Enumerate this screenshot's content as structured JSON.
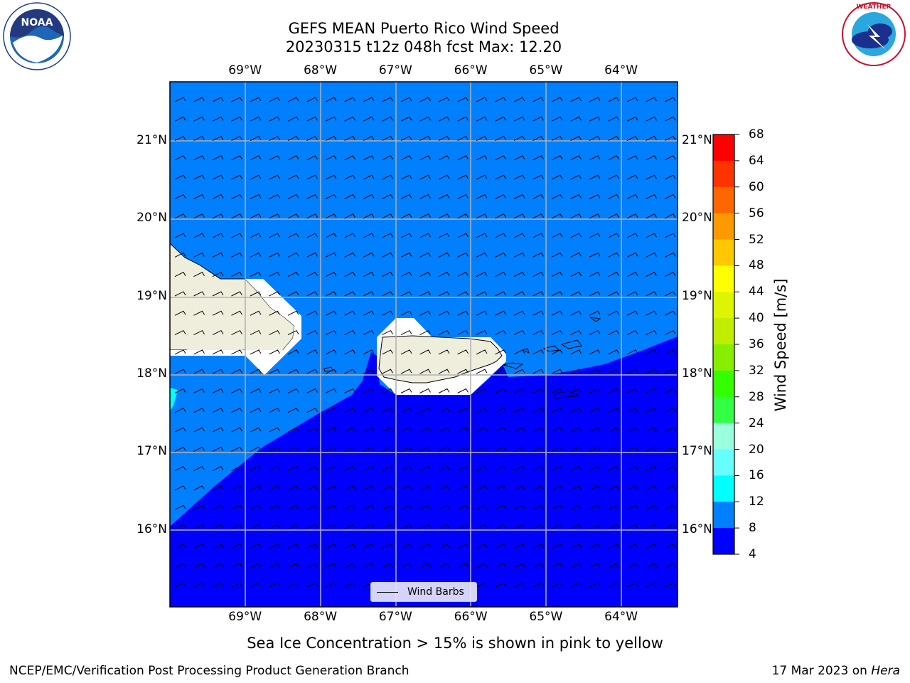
{
  "title": "GEFS MEAN Puerto Rico Wind Speed",
  "subtitle": "20230315 t12z 048h fcst   Max: 12.20",
  "map": {
    "lon_labels": [
      "69°W",
      "68°W",
      "67°W",
      "66°W",
      "65°W",
      "64°W"
    ],
    "lon_values": [
      -69,
      -68,
      -67,
      -66,
      -65,
      -64
    ],
    "lat_labels": [
      "21°N",
      "20°N",
      "19°N",
      "18°N",
      "17°N",
      "16°N"
    ],
    "lat_values": [
      21,
      20,
      19,
      18,
      17,
      16
    ],
    "extent": {
      "lon_min": -70,
      "lon_max": -63.25,
      "lat_min": 15,
      "lat_max": 21.75
    },
    "colors": {
      "ocean_8_12": "#0080ff",
      "ocean_4_8": "#0000ff",
      "ocean_12_16": "#00ffff",
      "land": "#efeedd",
      "grid": "#b0b0b0"
    }
  },
  "legend": {
    "label": "Wind Barbs"
  },
  "colorbar": {
    "title": "Wind Speed [m/s]",
    "ticks": [
      "68",
      "64",
      "60",
      "56",
      "52",
      "48",
      "44",
      "40",
      "36",
      "32",
      "28",
      "24",
      "20",
      "16",
      "12",
      "8",
      "4"
    ],
    "colors": [
      "#ff0000",
      "#ff3300",
      "#ff6600",
      "#ff9900",
      "#ffc800",
      "#ffff00",
      "#ddf500",
      "#c0ee00",
      "#88ee00",
      "#33ff00",
      "#33ff44",
      "#99ffdd",
      "#66ffff",
      "#00ffff",
      "#0080ff",
      "#0000ff"
    ]
  },
  "notes": {
    "sea_ice": "Sea Ice Concentration > 15% is shown in pink to yellow"
  },
  "footer": {
    "left": "NCEP/EMC/Verification Post Processing Product Generation Branch",
    "date": "17 Mar 2023 on ",
    "host": "Hera"
  },
  "logos": {
    "noaa": "NOAA",
    "nws": "NATIONAL WEATHER SERVICE"
  }
}
